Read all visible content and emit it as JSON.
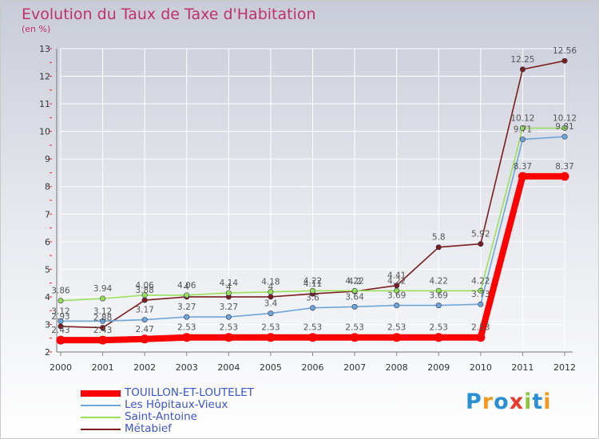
{
  "header": {
    "title": "Evolution du Taux de Taxe d'Habitation",
    "subtitle": "(en %)"
  },
  "brand": {
    "text": "Proxiti",
    "colors": [
      "#2b8fd6",
      "#f39a1e",
      "#2b8fd6",
      "#e9392e",
      "#8cc63f",
      "#2b8fd6",
      "#f39a1e"
    ]
  },
  "chart_data": {
    "type": "line",
    "title": "Evolution du Taux de Taxe d'Habitation",
    "subtitle": "(en %)",
    "xlabel": "",
    "ylabel": "",
    "x": [
      "2000",
      "2001",
      "2002",
      "2003",
      "2004",
      "2005",
      "2006",
      "2007",
      "2008",
      "2009",
      "2010",
      "2011",
      "2012"
    ],
    "ylim": [
      2,
      13
    ],
    "yticks": [
      2,
      3,
      4,
      5,
      6,
      7,
      8,
      9,
      10,
      11,
      12,
      13
    ],
    "grid": true,
    "legend_position": "bottom-left",
    "series": [
      {
        "name": "TOUILLON-ET-LOUTELET",
        "color": "#ff0000",
        "values": [
          2.43,
          2.43,
          2.47,
          2.53,
          2.53,
          2.53,
          2.53,
          2.53,
          2.53,
          2.53,
          2.53,
          8.37,
          8.37
        ],
        "labels": [
          "2.43",
          "2.43",
          "2.47",
          "2.53",
          "2.53",
          "2.53",
          "2.53",
          "2.53",
          "2.53",
          "2.53",
          "2.53",
          "8.37",
          "8.37"
        ]
      },
      {
        "name": "Les Hôpitaux-Vieux",
        "color": "#6fa6d8",
        "values": [
          3.12,
          3.12,
          3.17,
          3.27,
          3.27,
          3.4,
          3.6,
          3.64,
          3.69,
          3.69,
          3.73,
          9.71,
          9.81
        ],
        "labels": [
          "3.12",
          "3.12",
          "3.17",
          "3.27",
          "3.27",
          "3.4",
          "3.6",
          "3.64",
          "3.69",
          "3.69",
          "3.73",
          "9.71",
          "9.81"
        ]
      },
      {
        "name": "Saint-Antoine",
        "color": "#99e05a",
        "values": [
          3.86,
          3.94,
          4.06,
          4.06,
          4.14,
          4.18,
          4.22,
          4.22,
          4.22,
          4.22,
          4.22,
          10.12,
          10.12
        ],
        "labels": [
          "3.86",
          "3.94",
          "4.06",
          "4.06",
          "4.14",
          "4.18",
          "4.22",
          "4.22",
          "4.22",
          "4.22",
          "4.22",
          "10.12",
          "10.12"
        ]
      },
      {
        "name": "Métabief",
        "color": "#7a1e1e",
        "values": [
          2.93,
          2.88,
          3.88,
          4,
          4,
          4,
          4.11,
          4.2,
          4.41,
          5.8,
          5.92,
          12.25,
          12.56
        ],
        "labels": [
          "2.93",
          "2.88",
          "3.88",
          "4",
          "4",
          "4",
          "4.11",
          "4.2",
          "4.41",
          "5.8",
          "5.92",
          "12.25",
          "12.56"
        ]
      }
    ]
  }
}
